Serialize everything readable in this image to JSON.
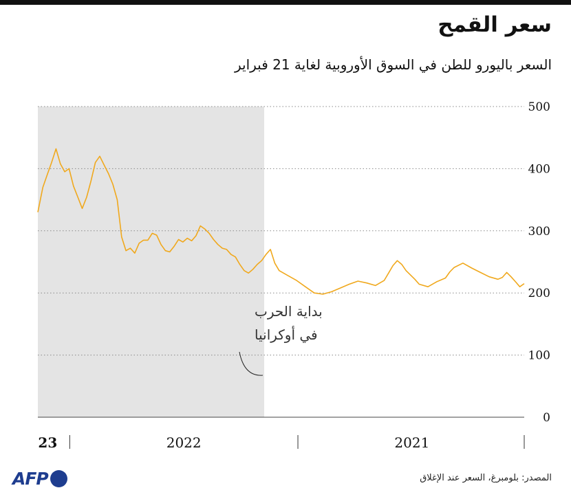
{
  "title": "سعر القمح",
  "subtitle": "السعر باليورو للطن في السوق الأوروبية لغاية 21 فبراير",
  "source": "المصدر: بلومبرغ، السعر عند الإغلاق",
  "logo_text": "AFP",
  "colors": {
    "line": "#f0a81c",
    "shade": "#e4e4e4",
    "grid": "#888888",
    "text": "#111111",
    "logo": "#1e3d8f"
  },
  "chart_data": {
    "type": "line",
    "title": "سعر القمح",
    "subtitle": "السعر باليورو للطن في السوق الأوروبية لغاية 21 فبراير",
    "x_direction": "right-to-left",
    "x_labels": [
      "2021",
      "2022",
      "23"
    ],
    "y_ticks": [
      0,
      100,
      200,
      300,
      400,
      500
    ],
    "ylim": [
      0,
      500
    ],
    "grid": "horizontal-dotted",
    "shaded_region": {
      "label": "بداية الحرب في أوكرانيا",
      "label_lines": [
        "بداية الحرب",
        "في أوكرانيا"
      ],
      "start": "2022-02-24",
      "end": "2023-02-21"
    },
    "x_start": "2021-01-04",
    "x_end": "2023-02-21",
    "series": [
      {
        "points": [
          [
            "2021-01-04",
            215
          ],
          [
            "2021-01-11",
            210
          ],
          [
            "2021-01-18",
            218
          ],
          [
            "2021-01-25",
            226
          ],
          [
            "2021-02-01",
            233
          ],
          [
            "2021-02-08",
            225
          ],
          [
            "2021-02-15",
            222
          ],
          [
            "2021-03-01",
            226
          ],
          [
            "2021-03-15",
            233
          ],
          [
            "2021-03-29",
            240
          ],
          [
            "2021-04-12",
            248
          ],
          [
            "2021-04-26",
            241
          ],
          [
            "2021-05-03",
            234
          ],
          [
            "2021-05-10",
            224
          ],
          [
            "2021-05-24",
            218
          ],
          [
            "2021-06-07",
            210
          ],
          [
            "2021-06-21",
            214
          ],
          [
            "2021-06-28",
            222
          ],
          [
            "2021-07-12",
            236
          ],
          [
            "2021-07-19",
            246
          ],
          [
            "2021-07-26",
            252
          ],
          [
            "2021-08-02",
            244
          ],
          [
            "2021-08-09",
            232
          ],
          [
            "2021-08-16",
            220
          ],
          [
            "2021-08-30",
            212
          ],
          [
            "2021-09-13",
            216
          ],
          [
            "2021-09-27",
            219
          ],
          [
            "2021-10-11",
            214
          ],
          [
            "2021-10-25",
            208
          ],
          [
            "2021-11-08",
            202
          ],
          [
            "2021-11-22",
            198
          ],
          [
            "2021-12-06",
            200
          ],
          [
            "2021-12-20",
            210
          ],
          [
            "2022-01-03",
            220
          ],
          [
            "2022-01-17",
            228
          ],
          [
            "2022-01-31",
            236
          ],
          [
            "2022-02-07",
            248
          ],
          [
            "2022-02-14",
            270
          ],
          [
            "2022-02-21",
            262
          ],
          [
            "2022-02-28",
            252
          ],
          [
            "2022-03-07",
            246
          ],
          [
            "2022-03-14",
            238
          ],
          [
            "2022-03-21",
            232
          ],
          [
            "2022-03-28",
            236
          ],
          [
            "2022-04-04",
            246
          ],
          [
            "2022-04-11",
            258
          ],
          [
            "2022-04-18",
            262
          ],
          [
            "2022-04-25",
            270
          ],
          [
            "2022-05-02",
            272
          ],
          [
            "2022-05-09",
            278
          ],
          [
            "2022-05-16",
            286
          ],
          [
            "2022-05-23",
            296
          ],
          [
            "2022-05-30",
            303
          ],
          [
            "2022-06-06",
            308
          ],
          [
            "2022-06-13",
            292
          ],
          [
            "2022-06-20",
            284
          ],
          [
            "2022-06-27",
            288
          ],
          [
            "2022-07-04",
            282
          ],
          [
            "2022-07-11",
            286
          ],
          [
            "2022-07-18",
            275
          ],
          [
            "2022-07-25",
            266
          ],
          [
            "2022-08-01",
            268
          ],
          [
            "2022-08-08",
            278
          ],
          [
            "2022-08-15",
            293
          ],
          [
            "2022-08-22",
            296
          ],
          [
            "2022-08-29",
            285
          ],
          [
            "2022-09-05",
            285
          ],
          [
            "2022-09-12",
            280
          ],
          [
            "2022-09-19",
            264
          ],
          [
            "2022-09-26",
            272
          ],
          [
            "2022-10-03",
            268
          ],
          [
            "2022-10-10",
            290
          ],
          [
            "2022-10-17",
            350
          ],
          [
            "2022-10-24",
            375
          ],
          [
            "2022-10-31",
            392
          ],
          [
            "2022-11-07",
            406
          ],
          [
            "2022-11-14",
            420
          ],
          [
            "2022-11-21",
            410
          ],
          [
            "2022-11-28",
            380
          ],
          [
            "2022-12-05",
            354
          ],
          [
            "2022-12-12",
            336
          ],
          [
            "2022-12-19",
            354
          ],
          [
            "2022-12-26",
            372
          ],
          [
            "2023-01-02",
            400
          ],
          [
            "2023-01-09",
            395
          ],
          [
            "2023-01-16",
            408
          ],
          [
            "2023-01-23",
            432
          ],
          [
            "2023-01-30",
            410
          ],
          [
            "2023-02-06",
            390
          ],
          [
            "2023-02-13",
            370
          ],
          [
            "2023-02-21",
            330
          ]
        ]
      }
    ]
  }
}
